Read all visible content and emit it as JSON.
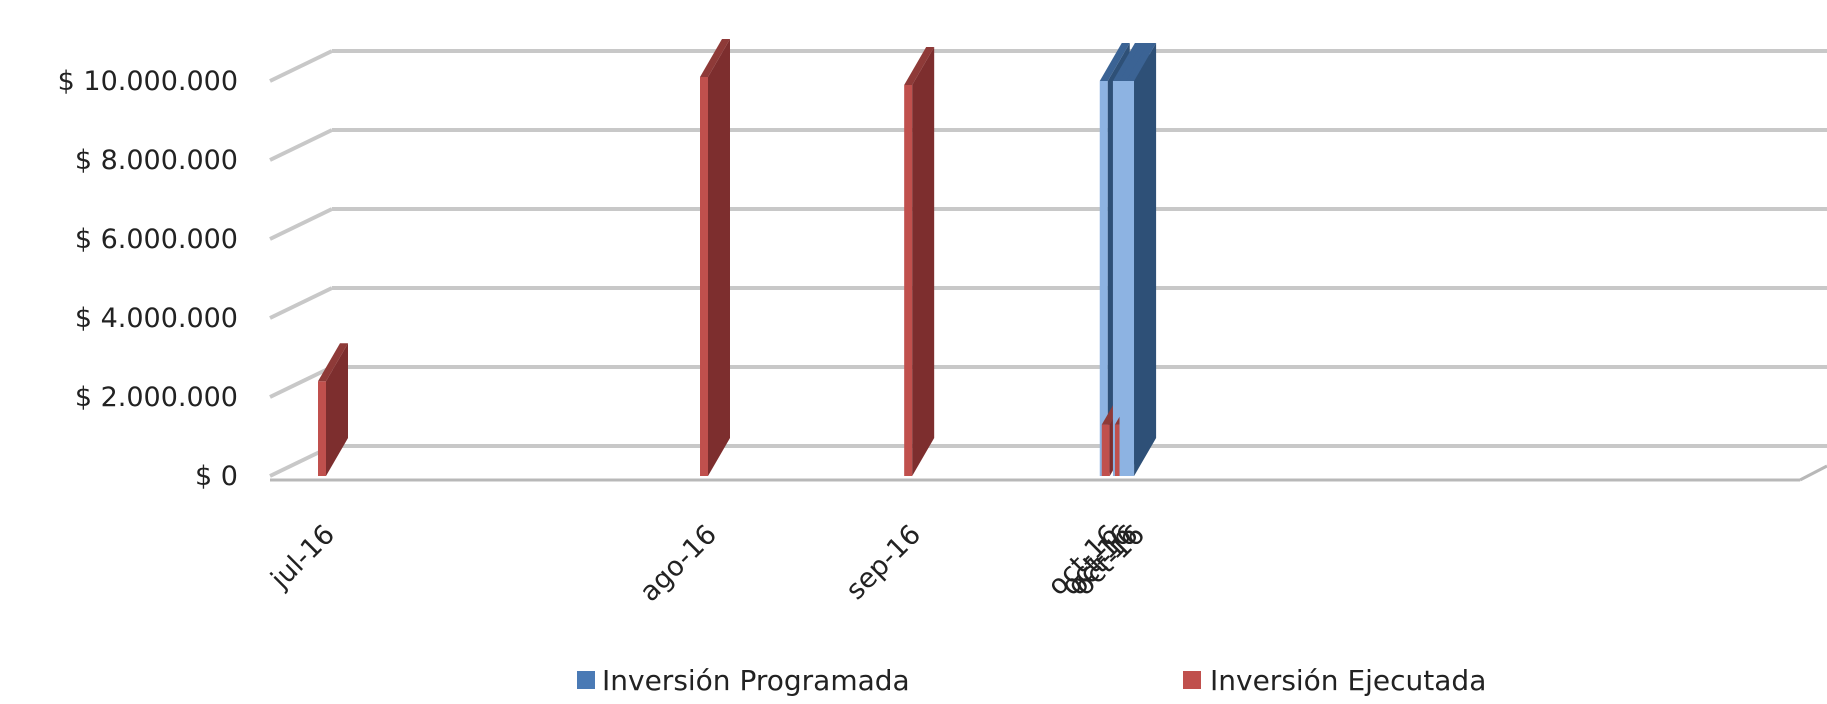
{
  "chart_data": {
    "type": "bar",
    "categories": [
      "jul-16",
      "ago-16",
      "sep-16",
      "oct-16",
      "oct-16",
      "oct-16",
      "oct-16"
    ],
    "series": [
      {
        "name": "Inversión Programada",
        "values": [
          0,
          0,
          0,
          10000000,
          10000000,
          10000000,
          10000000
        ]
      },
      {
        "name": "Inversión Ejecutada",
        "values": [
          2400000,
          10100000,
          9900000,
          1300000,
          1300000,
          0,
          0
        ]
      }
    ],
    "x_dates": [
      "2016-07-01",
      "2016-08-28",
      "2016-09-28",
      "2016-10-28",
      "2016-10-30",
      "2016-10-31",
      "2016-11-01"
    ],
    "ylim": [
      0,
      10000000
    ],
    "yticks": [
      "$ 0",
      "$ 2.000.000",
      "$ 4.000.000",
      "$ 6.000.000",
      "$ 8.000.000",
      "$ 10.000.000"
    ],
    "grid": true,
    "legend_position": "bottom",
    "style": "3d-column",
    "colors": {
      "Inversión Programada": "#2e5077",
      "Inversión Ejecutada": "#7d2e2e"
    }
  }
}
